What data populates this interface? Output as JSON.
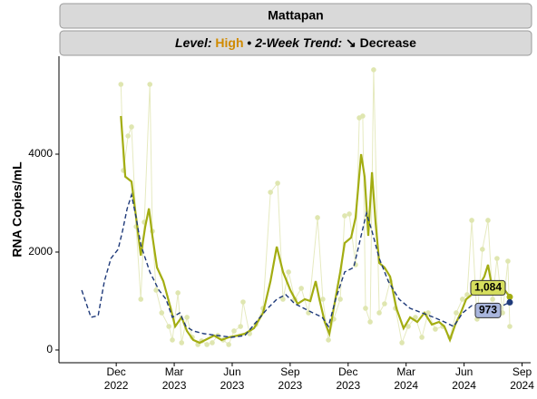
{
  "chart_data": {
    "type": "line",
    "title": "Mattapan",
    "subtitle": {
      "level_label": "Level:",
      "level": "High",
      "level_color": "#d08a00",
      "separator": "•",
      "trend_label": "2-Week Trend:",
      "trend": "↘ Decrease"
    },
    "y_label": "RNA Copies/mL",
    "xlim": [
      2022.67,
      2024.704
    ],
    "xticks": [
      {
        "value": 2022.917,
        "label": "Dec\n2022"
      },
      {
        "value": 2023.167,
        "label": "Mar\n2023"
      },
      {
        "value": 2023.417,
        "label": "Jun\n2023"
      },
      {
        "value": 2023.667,
        "label": "Sep\n2023"
      },
      {
        "value": 2023.917,
        "label": "Dec\n2023"
      },
      {
        "value": 2024.167,
        "label": "Mar\n2024"
      },
      {
        "value": 2024.417,
        "label": "Jun\n2024"
      },
      {
        "value": 2024.667,
        "label": "Sep\n2024"
      }
    ],
    "ylim": [
      -260,
      6000
    ],
    "yticks": [
      0,
      2000,
      4000
    ],
    "grid": false,
    "series": [
      {
        "style": "points",
        "color": "#dfe6b0",
        "x": [
          2022.937,
          2022.948,
          2022.968,
          2022.983,
          2023.003,
          2023.023,
          2023.038,
          2023.062,
          2023.073,
          2023.089,
          2023.113,
          2023.144,
          2023.159,
          2023.183,
          2023.199,
          2023.222,
          2023.245,
          2023.269,
          2023.285,
          2023.308,
          2023.331,
          2023.355,
          2023.378,
          2023.402,
          2023.425,
          2023.453,
          2023.464,
          2023.492,
          2023.519,
          2023.55,
          2023.582,
          2023.613,
          2023.636,
          2023.66,
          2023.687,
          2023.715,
          2023.746,
          2023.785,
          2023.808,
          2023.832,
          2023.855,
          2023.883,
          2023.902,
          2023.922,
          2023.949,
          2023.965,
          2023.98,
          2023.992,
          2024.012,
          2024.027,
          2024.051,
          2024.074,
          2024.098,
          2024.121,
          2024.149,
          2024.176,
          2024.207,
          2024.235,
          2024.262,
          2024.293,
          2024.325,
          2024.356,
          2024.383,
          2024.41,
          2024.43,
          2024.45,
          2024.473,
          2024.496,
          2024.52,
          2024.54,
          2024.559,
          2024.583,
          2024.606,
          2024.614
        ],
        "values": [
          5426,
          3667,
          4371,
          4556,
          2519,
          1037,
          2611,
          5426,
          2426,
          1222,
          759,
          481,
          204,
          1167,
          148,
          667,
          259,
          111,
          185,
          111,
          148,
          296,
          204,
          111,
          389,
          481,
          981,
          333,
          519,
          852,
          3222,
          3407,
          1037,
          1593,
          1037,
          1259,
          759,
          2704,
          1037,
          204,
          630,
          1037,
          2741,
          2778,
          1741,
          4741,
          4778,
          852,
          574,
          5723,
          759,
          944,
          1407,
          852,
          148,
          481,
          667,
          259,
          759,
          426,
          481,
          259,
          759,
          1037,
          1130,
          2648,
          630,
          2056,
          2648,
          1037,
          1870,
          759,
          1815,
          481
        ]
      },
      {
        "style": "line",
        "color": "#a3ad12",
        "x": [
          2022.937,
          2022.956,
          2022.983,
          2023.003,
          2023.023,
          2023.042,
          2023.058,
          2023.073,
          2023.093,
          2023.12,
          2023.152,
          2023.171,
          2023.199,
          2023.222,
          2023.249,
          2023.277,
          2023.308,
          2023.339,
          2023.371,
          2023.402,
          2023.441,
          2023.472,
          2023.511,
          2023.55,
          2023.582,
          2023.609,
          2023.636,
          2023.668,
          2023.699,
          2023.73,
          2023.754,
          2023.777,
          2023.793,
          2023.816,
          2023.836,
          2023.855,
          2023.883,
          2023.902,
          2023.93,
          2023.949,
          2023.973,
          2023.988,
          2024.004,
          2024.02,
          2024.035,
          2024.051,
          2024.074,
          2024.098,
          2024.125,
          2024.156,
          2024.184,
          2024.215,
          2024.246,
          2024.278,
          2024.309,
          2024.332,
          2024.356,
          2024.379,
          2024.403,
          2024.426,
          2024.45,
          2024.481,
          2024.504,
          2024.52,
          2024.536,
          2024.559,
          2024.587,
          2024.614
        ],
        "values": [
          4780,
          3540,
          3440,
          2700,
          1930,
          2520,
          2890,
          2330,
          1685,
          1407,
          852,
          481,
          667,
          389,
          204,
          148,
          222,
          296,
          204,
          259,
          296,
          333,
          444,
          759,
          1407,
          2111,
          1593,
          1222,
          944,
          1037,
          1000,
          1407,
          1037,
          574,
          333,
          852,
          1593,
          2185,
          2296,
          2704,
          4000,
          3537,
          2333,
          3630,
          2611,
          1778,
          1685,
          1500,
          852,
          444,
          667,
          574,
          759,
          519,
          574,
          481,
          204,
          519,
          759,
          1037,
          1130,
          1315,
          1500,
          1741,
          1315,
          1370,
          1259,
          1084
        ],
        "value_labels": [
          null,
          null,
          null,
          null,
          null,
          null,
          null,
          null,
          null,
          null,
          null,
          null,
          null,
          null,
          null,
          null,
          null,
          null,
          null,
          null,
          null,
          null,
          null,
          null,
          null,
          null,
          null,
          null,
          null,
          null,
          null,
          null,
          null,
          null,
          null,
          null,
          null,
          null,
          null,
          null,
          null,
          null,
          null,
          null,
          null,
          null,
          null,
          null,
          null,
          null,
          null,
          null,
          null,
          null,
          null,
          null,
          null,
          null,
          null,
          null,
          null,
          null,
          null,
          null,
          null,
          null,
          null,
          "1,084"
        ],
        "label_color": "#d6df5e"
      },
      {
        "style": "dashed",
        "color": "#1f3a7a",
        "x": [
          2022.768,
          2022.808,
          2022.839,
          2022.866,
          2022.894,
          2022.925,
          2022.944,
          2022.964,
          2022.983,
          2023.003,
          2023.023,
          2023.062,
          2023.101,
          2023.132,
          2023.159,
          2023.191,
          2023.218,
          2023.249,
          2023.296,
          2023.355,
          2023.414,
          2023.472,
          2023.531,
          2023.57,
          2023.609,
          2023.648,
          2023.687,
          2023.726,
          2023.765,
          2023.805,
          2023.832,
          2023.863,
          2023.902,
          2023.941,
          2023.973,
          2023.996,
          2024.02,
          2024.051,
          2024.09,
          2024.137,
          2024.184,
          2024.235,
          2024.286,
          2024.332,
          2024.372,
          2024.411,
          2024.45,
          2024.489,
          2024.528,
          2024.575,
          2024.614
        ],
        "values": [
          1222,
          667,
          704,
          1407,
          1870,
          2056,
          2426,
          2889,
          3167,
          2704,
          2148,
          1593,
          1222,
          1037,
          667,
          759,
          481,
          389,
          333,
          296,
          259,
          296,
          630,
          852,
          1037,
          1130,
          944,
          852,
          759,
          667,
          481,
          1037,
          1593,
          1685,
          2333,
          2796,
          2426,
          1870,
          1407,
          1037,
          852,
          759,
          667,
          574,
          481,
          759,
          907,
          926,
          889,
          889,
          973
        ],
        "label_color": "#a9b6de"
      }
    ]
  }
}
